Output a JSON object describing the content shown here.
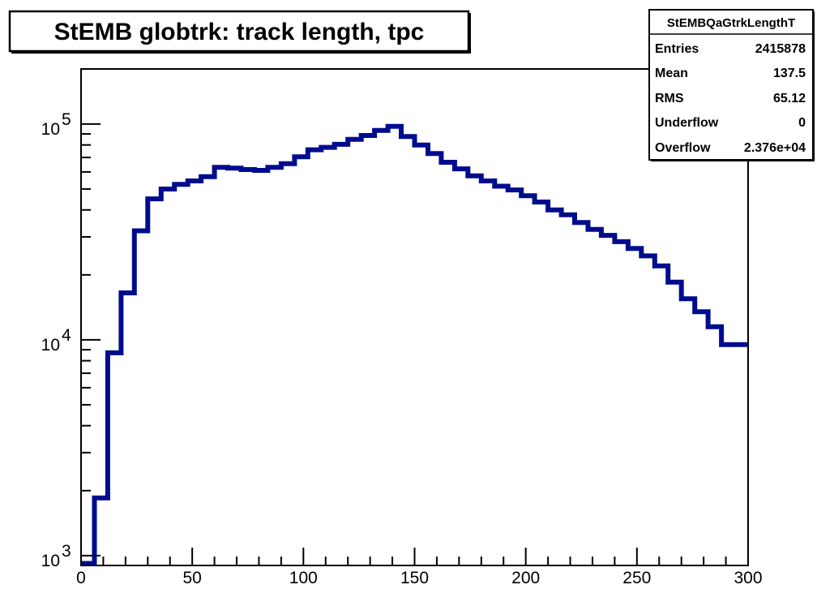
{
  "chart_data": {
    "type": "histogram-step",
    "title": "StEMB globtrk: track length, tpc",
    "xlabel": "",
    "ylabel": "",
    "xlim": [
      0,
      300
    ],
    "ylim": [
      900,
      180000
    ],
    "y_scale": "log",
    "bin_width": 6,
    "x_ticks": [
      0,
      50,
      100,
      150,
      200,
      250,
      300
    ],
    "y_ticks": [
      {
        "base": "10",
        "exp": "3",
        "value": 1000
      },
      {
        "base": "10",
        "exp": "4",
        "value": 10000
      },
      {
        "base": "10",
        "exp": "5",
        "value": 100000
      }
    ],
    "grid": false,
    "series": [
      {
        "color": "#000c8e",
        "bin_edges": [
          0,
          6,
          12,
          18,
          24,
          30,
          36,
          42,
          48,
          54,
          60,
          66,
          72,
          78,
          84,
          90,
          96,
          102,
          108,
          114,
          120,
          126,
          132,
          138,
          144,
          150,
          156,
          162,
          168,
          174,
          180,
          186,
          192,
          198,
          204,
          210,
          216,
          222,
          228,
          234,
          240,
          246,
          252,
          258,
          264,
          270,
          276,
          282,
          288,
          294,
          300
        ],
        "values": [
          920,
          1850,
          8700,
          16500,
          32000,
          45000,
          50000,
          52500,
          54500,
          57000,
          63000,
          62500,
          61500,
          61000,
          63000,
          65500,
          70500,
          76000,
          78000,
          80500,
          85000,
          88500,
          93500,
          97500,
          87500,
          80000,
          73000,
          66500,
          62000,
          57500,
          54500,
          51500,
          49500,
          46500,
          43500,
          40000,
          38000,
          35000,
          32500,
          30500,
          28500,
          26500,
          24500,
          22000,
          18500,
          15500,
          13500,
          11500,
          9500,
          9500
        ]
      }
    ],
    "stats_box": {
      "name": "StEMBQaGtrkLengthT",
      "rows": [
        {
          "label": "Entries",
          "value": "2415878"
        },
        {
          "label": "Mean",
          "value": "137.5"
        },
        {
          "label": "RMS",
          "value": "65.12"
        },
        {
          "label": "Underflow",
          "value": "0"
        },
        {
          "label": "Overflow",
          "value": "2.376e+04"
        }
      ]
    }
  }
}
